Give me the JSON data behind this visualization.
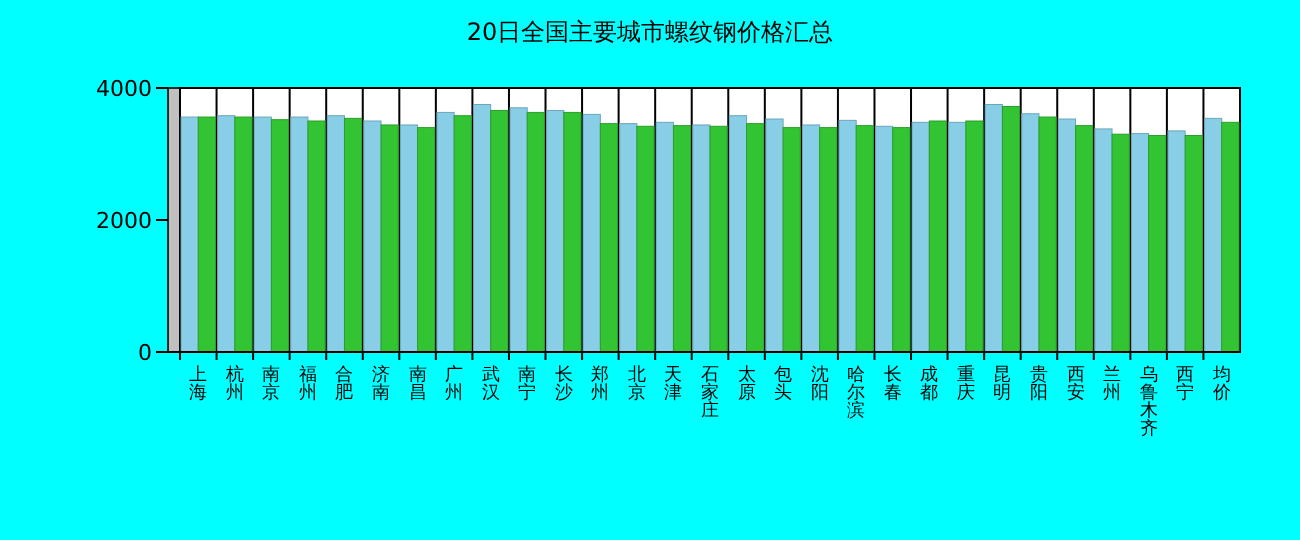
{
  "chart_data": {
    "type": "bar",
    "title": "20日全国主要城市螺纹钢价格汇总",
    "categories": [
      "上海",
      "杭州",
      "南京",
      "福州",
      "合肥",
      "济南",
      "南昌",
      "广州",
      "武汉",
      "南宁",
      "长沙",
      "郑州",
      "北京",
      "天津",
      "石家庄",
      "太原",
      "包头",
      "沈阳",
      "哈尔滨",
      "长春",
      "成都",
      "重庆",
      "昆明",
      "贵阳",
      "西安",
      "兰州",
      "乌鲁木齐",
      "西宁",
      "均价"
    ],
    "series": [
      {
        "color": "#87cee6",
        "values": [
          3560,
          3580,
          3560,
          3560,
          3580,
          3500,
          3440,
          3630,
          3750,
          3700,
          3660,
          3600,
          3460,
          3480,
          3440,
          3580,
          3530,
          3440,
          3510,
          3420,
          3480,
          3480,
          3750,
          3610,
          3530,
          3380,
          3310,
          3350,
          3540
        ]
      },
      {
        "color": "#33c433",
        "values": [
          3560,
          3560,
          3520,
          3500,
          3540,
          3440,
          3400,
          3580,
          3660,
          3630,
          3630,
          3460,
          3420,
          3430,
          3420,
          3460,
          3400,
          3400,
          3430,
          3400,
          3500,
          3500,
          3720,
          3560,
          3430,
          3300,
          3280,
          3280,
          3480
        ]
      }
    ],
    "ylim": [
      0,
      4000
    ],
    "yticks": [
      0,
      2000,
      4000
    ],
    "grid": "x"
  }
}
